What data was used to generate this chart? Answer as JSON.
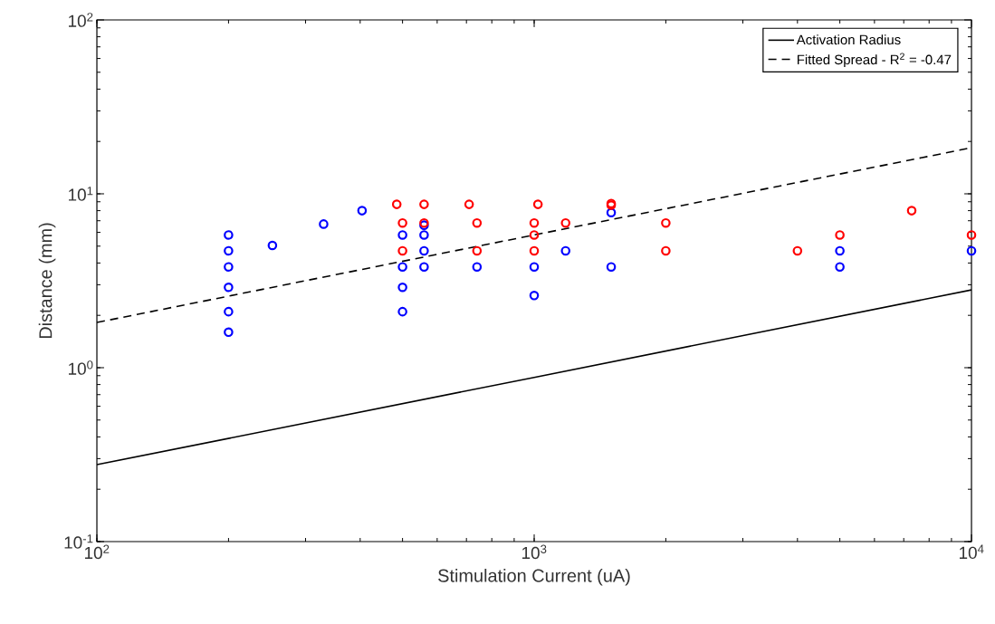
{
  "chart_data": {
    "type": "scatter",
    "xlabel": "Stimulation Current (uA)",
    "ylabel": "Distance (mm)",
    "log": "xy",
    "legend": "top right",
    "grid": false,
    "marker": "circle",
    "xlim": [
      100,
      10000
    ],
    "ylim": [
      0.1,
      100
    ],
    "xticks": [
      {
        "value": 100,
        "label": "10$^{2}$"
      },
      {
        "value": 1000,
        "label": "10$^{3}$"
      },
      {
        "value": 10000,
        "label": "10$^{4}$"
      }
    ],
    "yticks": [
      {
        "value": 0.1,
        "label": "10$^{-1}$"
      },
      {
        "value": 1,
        "label": "10$^{0}$"
      },
      {
        "value": 10,
        "label": "10$^{1}$"
      },
      {
        "value": 100,
        "label": "10$^{2}$"
      }
    ],
    "series": [
      {
        "color": "#0000ff",
        "x": [
          200,
          200,
          200,
          200,
          200,
          200,
          252,
          330,
          404,
          500,
          500,
          500,
          500,
          560,
          560,
          560,
          560,
          740,
          1000,
          1000,
          1180,
          1500,
          1500,
          5000,
          5000,
          10000
        ],
        "values": [
          5.8,
          4.7,
          3.8,
          2.9,
          2.1,
          1.6,
          5.05,
          6.7,
          8.0,
          5.8,
          3.8,
          2.9,
          2.1,
          6.6,
          5.8,
          4.7,
          3.8,
          3.8,
          3.8,
          2.6,
          4.7,
          7.8,
          3.8,
          4.7,
          3.8,
          4.7
        ]
      },
      {
        "color": "#ff0000",
        "x": [
          485,
          500,
          500,
          560,
          560,
          710,
          740,
          740,
          1000,
          1000,
          1000,
          1020,
          1180,
          1500,
          1500,
          2000,
          2000,
          4000,
          5000,
          7300,
          10000
        ],
        "values": [
          8.7,
          6.8,
          4.7,
          8.7,
          6.8,
          8.7,
          6.8,
          4.7,
          6.8,
          5.8,
          4.7,
          8.7,
          6.8,
          8.8,
          8.6,
          6.8,
          4.7,
          4.7,
          5.8,
          8.0,
          5.8
        ]
      },
      {
        "type": "line",
        "name": "Activation Radius",
        "color": "#000000",
        "line_style": "solid",
        "marker": "none",
        "x": [
          100,
          1000,
          10000
        ],
        "values": [
          0.277,
          0.88,
          2.8
        ]
      },
      {
        "type": "line",
        "name": "Fitted Spread - R$^{2}$ = -0.47",
        "color": "#000000",
        "line_style": "dashed",
        "marker": "none",
        "x": [
          100,
          1000,
          10000
        ],
        "values": [
          1.82,
          5.8,
          18.4
        ]
      }
    ]
  }
}
